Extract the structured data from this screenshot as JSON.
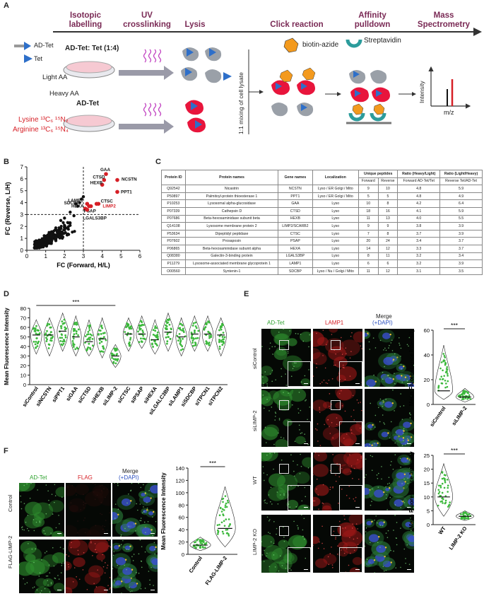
{
  "panels": {
    "A": "A",
    "B": "B",
    "C": "C",
    "D": "D",
    "E": "E",
    "F": "F"
  },
  "workflow": {
    "steps": [
      {
        "label": "Isotopic labelling",
        "l1": "Isotopic",
        "l2": "labelling"
      },
      {
        "label": "UV crosslinking",
        "l1": "UV",
        "l2": "crosslinking"
      },
      {
        "label": "Lysis",
        "l1": "Lysis",
        "l2": ""
      },
      {
        "label": "Click reaction",
        "l1": "Click reaction",
        "l2": ""
      },
      {
        "label": "Affinity pulldown",
        "l1": "Affinity",
        "l2": "pulldown"
      },
      {
        "label": "Mass Spectrometry",
        "l1": "Mass",
        "l2": "Spectrometry"
      }
    ],
    "legend_adtet": "AD-Tet",
    "legend_tet": "Tet",
    "dish1_title": "AD-Tet: Tet (1:4)",
    "dish1_sub": "Light AA",
    "dish2_sub": "Heavy AA",
    "dish2_title": "AD-Tet",
    "lysine": "Lysine ¹³C₆ ¹⁵N₂",
    "arginine": "Arginine ¹³C₆ ¹⁵N₄",
    "mixing": "1:1 mixing of cell lysate",
    "biotin": "biotin-azide",
    "strep": "Streptavidin",
    "ms_y": "Intensity",
    "ms_x": "m/z"
  },
  "scatter": {
    "type": "scatter",
    "xlabel": "FC (Forward, H/L)",
    "ylabel": "FC (Reverse, L/H)",
    "xticks": [
      "0",
      "1",
      "2",
      "3",
      "4",
      "5",
      "6"
    ],
    "yticks": [
      "0",
      "1",
      "2",
      "3",
      "4",
      "5",
      "6",
      "7"
    ],
    "xlim": [
      0,
      6
    ],
    "ylim": [
      0,
      7
    ],
    "threshold_x": 3,
    "threshold_y": 3,
    "highlighted": [
      {
        "name": "GAA",
        "x": 4.2,
        "y": 6.4
      },
      {
        "name": "NCSTN",
        "x": 4.8,
        "y": 5.9
      },
      {
        "name": "CTSD",
        "x": 4.1,
        "y": 5.9
      },
      {
        "name": "HEXB",
        "x": 4.0,
        "y": 5.5
      },
      {
        "name": "PPT1",
        "x": 4.8,
        "y": 4.9
      },
      {
        "name": "SDCBP",
        "x": 3.1,
        "y": 3.5
      },
      {
        "name": "LAMP1",
        "x": 3.2,
        "y": 3.9
      },
      {
        "name": "HEXA",
        "x": 3.3,
        "y": 3.7
      },
      {
        "name": "CTSC",
        "x": 3.7,
        "y": 3.9
      },
      {
        "name": "LIMP2",
        "x": 3.8,
        "y": 3.9
      },
      {
        "name": "PSAP",
        "x": 3.4,
        "y": 3.7
      },
      {
        "name": "LGALS3BP",
        "x": 3.2,
        "y": 3.4
      }
    ],
    "black_extra": [
      [
        2.6,
        3.9
      ],
      [
        2.7,
        3.7
      ],
      [
        2.8,
        4.0
      ],
      [
        2.9,
        4.3
      ],
      [
        3.0,
        4.5
      ],
      [
        2.5,
        2.9
      ],
      [
        2.3,
        3.2
      ],
      [
        2.0,
        2.7
      ],
      [
        2.2,
        2.3
      ],
      [
        1.8,
        2.5
      ]
    ]
  },
  "table": {
    "headers": [
      "Protein ID",
      "Protein names",
      "Gene names",
      "Localization",
      "Unique peptides",
      "Ratio (Heavy/Light)",
      "Ratio (Light/Heavy)"
    ],
    "subheaders": [
      "Forward",
      "Reverse",
      "Forward AD-Tet/Tet",
      "Reverse Tet/AD-Tet"
    ],
    "rows": [
      [
        "Q92542",
        "Nicastrin",
        "NCSTN",
        "Lyso / ER Golgi / Mito",
        "9",
        "10",
        "4.8",
        "5.9"
      ],
      [
        "P50897",
        "Palmitoyl-protein thioesterase 1",
        "PPT1",
        "Lyso / ER Golgi / Mito",
        "5",
        "5",
        "4.8",
        "4.9"
      ],
      [
        "P10253",
        "Lysosomal alpha-glucosidase",
        "GAA",
        "Lyso",
        "10",
        "8",
        "4.2",
        "6.4"
      ],
      [
        "P07339",
        "Cathepsin D",
        "CTSD",
        "Lyso",
        "18",
        "16",
        "4.1",
        "5.9"
      ],
      [
        "P07686",
        "Beta-hexosaminidase subunit beta",
        "HEXB",
        "Lyso",
        "11",
        "13",
        "4.0",
        "5.5"
      ],
      [
        "Q14108",
        "Lysosome membrane protein 2",
        "LIMP2/SCARB2",
        "Lyso",
        "9",
        "9",
        "3.8",
        "3.9"
      ],
      [
        "P53634",
        "Dipeptidyl peptidase",
        "CTSC",
        "Lyso",
        "7",
        "8",
        "3.7",
        "3.9"
      ],
      [
        "P07602",
        "Prosaposin",
        "PSAP",
        "Lyso",
        "20",
        "24",
        "3.4",
        "3.7"
      ],
      [
        "P06865",
        "Beta-hexosaminidase subunit alpha",
        "HEXA",
        "Lyso",
        "14",
        "12",
        "3.3",
        "3.7"
      ],
      [
        "Q08380",
        "Galectin-3-binding protein",
        "LGALS3BP",
        "Lyso",
        "8",
        "11",
        "3.2",
        "3.4"
      ],
      [
        "P11279",
        "Lysosome-associated membrane glycoprotein 1",
        "LAMP1",
        "Lyso",
        "6",
        "6",
        "3.2",
        "3.9"
      ],
      [
        "O00560",
        "Syntenin-1",
        "SDCBP",
        "Lyso / Nu / Golgi / Mito",
        "11",
        "12",
        "3.1",
        "3.5"
      ]
    ]
  },
  "violin_d": {
    "type": "violin",
    "ylabel": "Mean Fluorescence Intensity",
    "yticks": [
      "0",
      "10",
      "20",
      "30",
      "40",
      "50",
      "60",
      "70",
      "80"
    ],
    "ylim": [
      0,
      80
    ],
    "sig": "***",
    "categories": [
      "siControl",
      "siNCSTN",
      "siPPT1",
      "siGAA",
      "siCTSD",
      "siHEXB",
      "siLIMP-2",
      "siCTSC",
      "siPSAP",
      "siHEXA",
      "siLGALC3BP",
      "siLAMP1",
      "siSDCBP",
      "siTPCN1",
      "siTPCN2"
    ],
    "medians": [
      52,
      52,
      56,
      50,
      45,
      48,
      30,
      53,
      53,
      47,
      55,
      50,
      53,
      53,
      52
    ],
    "mins": [
      32,
      30,
      35,
      30,
      30,
      28,
      18,
      35,
      38,
      32,
      35,
      30,
      35,
      35,
      30
    ],
    "maxs": [
      68,
      70,
      75,
      72,
      68,
      70,
      42,
      70,
      72,
      68,
      75,
      70,
      72,
      72,
      70
    ]
  },
  "panel_e": {
    "cols": [
      "AD-Tet",
      "LAMP1",
      "Merge",
      "(+DAPI)"
    ],
    "rows": [
      "siControl",
      "siLIMP-2",
      "WT",
      "LIMP-2 KO"
    ],
    "chart1": {
      "type": "violin",
      "ylabel": "Mean Fluorescence Intensity",
      "yticks": [
        "0",
        "20",
        "40",
        "60"
      ],
      "ylim": [
        0,
        60
      ],
      "categories": [
        "siControl",
        "siLIMP-2"
      ],
      "medians": [
        11,
        6
      ],
      "maxs": [
        48,
        13
      ],
      "mins": [
        4,
        2
      ],
      "sig": "***"
    },
    "chart2": {
      "type": "violin",
      "ylabel": "Mean Fluorescence Intensity",
      "yticks": [
        "0",
        "5",
        "10",
        "15",
        "20",
        "25"
      ],
      "ylim": [
        0,
        25
      ],
      "categories": [
        "WT",
        "LIMP-2 KO"
      ],
      "medians": [
        10,
        3
      ],
      "maxs": [
        22,
        5
      ],
      "mins": [
        3,
        1.5
      ],
      "sig": "***"
    }
  },
  "panel_f": {
    "cols": [
      "AD-Tet",
      "FLAG",
      "Merge",
      "(+DAPI)"
    ],
    "rows": [
      "Control",
      "FLAG-LIMP-2"
    ],
    "chart": {
      "type": "violin",
      "ylabel": "Mean Fluorescence Intensity",
      "yticks": [
        "0",
        "20",
        "40",
        "60",
        "80",
        "100",
        "120",
        "140"
      ],
      "ylim": [
        0,
        140
      ],
      "categories": [
        "Control",
        "FLAG-LIMP-2"
      ],
      "medians": [
        15,
        42
      ],
      "maxs": [
        28,
        110
      ],
      "mins": [
        6,
        12
      ],
      "sig": "***"
    }
  },
  "colors": {
    "red": "#d61f26",
    "green": "#2fa32f",
    "blue": "#2a4fbf",
    "purple": "#7a2a55",
    "orange": "#f39a1e",
    "teal": "#2c9c9c",
    "violin_green": "#3cb83c"
  }
}
